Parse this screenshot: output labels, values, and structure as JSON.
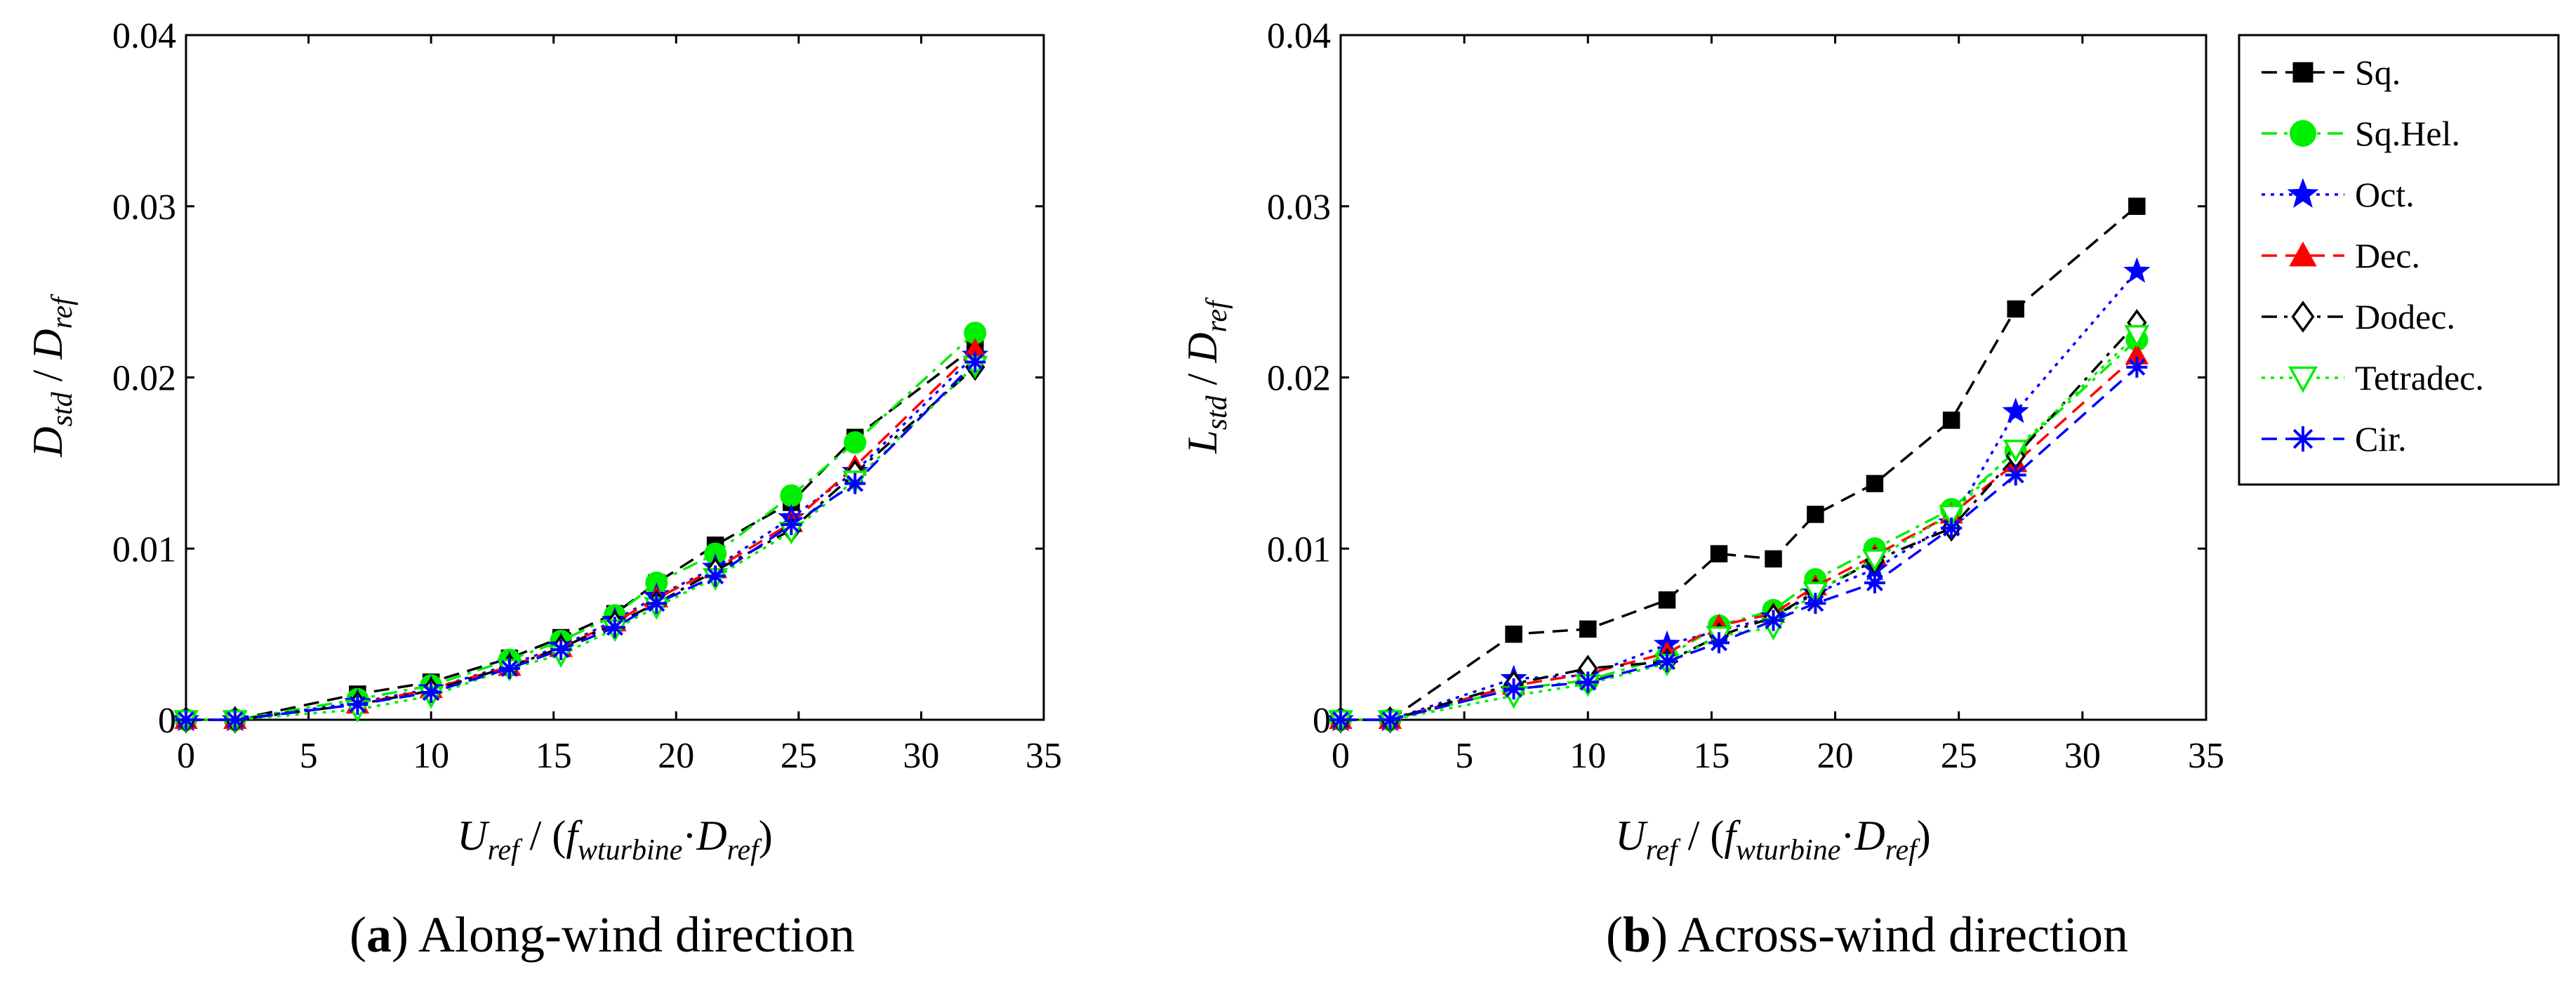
{
  "chart_data": [
    {
      "type": "line",
      "caption_letter": "a",
      "caption_text": "Along-wind direction",
      "ylabel_main": "D",
      "ylabel_sub": "std",
      "ylabel_mid": " / ",
      "ylabel_main2": "D",
      "ylabel_sub2": "ref",
      "xlim": [
        0,
        35
      ],
      "ylim": [
        0,
        0.04
      ],
      "xticks": [
        "0",
        "5",
        "10",
        "15",
        "20",
        "25",
        "30",
        "35"
      ],
      "yticks": [
        "0",
        "0.01",
        "0.02",
        "0.03",
        "0.04"
      ],
      "x": [
        0,
        2,
        7,
        10,
        13.2,
        15.3,
        17.5,
        19.2,
        21.6,
        24.7,
        27.3,
        32.2
      ],
      "series": [
        {
          "name": "Sq.",
          "values": [
            0,
            0,
            0.0015,
            0.0022,
            0.0036,
            0.0048,
            0.0062,
            0.008,
            0.0102,
            0.0127,
            0.0165,
            0.0218
          ]
        },
        {
          "name": "Sq.Hel.",
          "values": [
            0,
            0,
            0.0012,
            0.002,
            0.0035,
            0.0046,
            0.0061,
            0.008,
            0.0097,
            0.0131,
            0.0162,
            0.0226
          ]
        },
        {
          "name": "Oct.",
          "values": [
            0,
            0,
            0.001,
            0.0018,
            0.0032,
            0.0043,
            0.0058,
            0.0072,
            0.0089,
            0.0118,
            0.0145,
            0.0213
          ]
        },
        {
          "name": "Dec.",
          "values": [
            0,
            0,
            0.0009,
            0.0018,
            0.0031,
            0.0042,
            0.0057,
            0.0071,
            0.0088,
            0.0115,
            0.0148,
            0.0216
          ]
        },
        {
          "name": "Dodec.",
          "values": [
            0,
            0,
            0.0009,
            0.0017,
            0.0031,
            0.0042,
            0.0056,
            0.0068,
            0.0087,
            0.0111,
            0.0144,
            0.0206
          ]
        },
        {
          "name": "Tetradec.",
          "values": [
            0,
            0,
            0.0006,
            0.0014,
            0.003,
            0.0038,
            0.0053,
            0.0066,
            0.0083,
            0.011,
            0.014,
            0.0207
          ]
        },
        {
          "name": "Cir.",
          "values": [
            0,
            0,
            0.0009,
            0.0016,
            0.003,
            0.0041,
            0.0054,
            0.0068,
            0.0084,
            0.0114,
            0.0138,
            0.0209
          ]
        }
      ]
    },
    {
      "type": "line",
      "caption_letter": "b",
      "caption_text": "Across-wind direction",
      "ylabel_main": "L",
      "ylabel_sub": "std",
      "ylabel_mid": " / ",
      "ylabel_main2": "D",
      "ylabel_sub2": "ref",
      "xlim": [
        0,
        35
      ],
      "ylim": [
        0,
        0.04
      ],
      "xticks": [
        "0",
        "5",
        "10",
        "15",
        "20",
        "25",
        "30",
        "35"
      ],
      "yticks": [
        "0",
        "0.01",
        "0.02",
        "0.03",
        "0.04"
      ],
      "x": [
        0,
        2,
        7,
        10,
        13.2,
        15.3,
        17.5,
        19.2,
        21.6,
        24.7,
        27.3,
        32.2
      ],
      "series": [
        {
          "name": "Sq.",
          "values": [
            0,
            0,
            0.005,
            0.0053,
            0.007,
            0.0097,
            0.0094,
            0.012,
            0.0138,
            0.0175,
            0.024,
            0.03
          ]
        },
        {
          "name": "Sq.Hel.",
          "values": [
            0,
            0,
            0.0018,
            0.0023,
            0.0037,
            0.0055,
            0.0064,
            0.0082,
            0.01,
            0.0123,
            0.0157,
            0.0222
          ]
        },
        {
          "name": "Oct.",
          "values": [
            0,
            0,
            0.0024,
            0.0026,
            0.0044,
            0.0052,
            0.006,
            0.0074,
            0.0088,
            0.0115,
            0.018,
            0.0262
          ]
        },
        {
          "name": "Dec.",
          "values": [
            0,
            0,
            0.002,
            0.0027,
            0.0039,
            0.0055,
            0.0062,
            0.0078,
            0.0096,
            0.012,
            0.015,
            0.0213
          ]
        },
        {
          "name": "Dodec.",
          "values": [
            0,
            0,
            0.0021,
            0.003,
            0.0034,
            0.0049,
            0.006,
            0.0075,
            0.0093,
            0.0112,
            0.0154,
            0.0232
          ]
        },
        {
          "name": "Tetradec.",
          "values": [
            0,
            0,
            0.0014,
            0.0021,
            0.0033,
            0.0049,
            0.0054,
            0.0075,
            0.0094,
            0.012,
            0.0158,
            0.0225
          ]
        },
        {
          "name": "Cir.",
          "values": [
            0,
            0,
            0.0018,
            0.0022,
            0.0034,
            0.0045,
            0.0058,
            0.0068,
            0.008,
            0.0112,
            0.0143,
            0.0206
          ]
        }
      ]
    }
  ],
  "xlabel": {
    "u_main": "U",
    "u_sub": "ref",
    "mid1": " / (",
    "f_main": "f",
    "f_sub": "wturbine",
    "dot": "·",
    "d_main": "D",
    "d_sub": "ref",
    "close": ")"
  },
  "legend": {
    "entries": [
      {
        "label": "Sq.",
        "color": "#000000",
        "marker": "square",
        "dash": "long-dash"
      },
      {
        "label": "Sq.Hel.",
        "color": "#00ee00",
        "marker": "circle",
        "dash": "dash-dot"
      },
      {
        "label": "Oct.",
        "color": "#0000ff",
        "marker": "star",
        "dash": "dotted"
      },
      {
        "label": "Dec.",
        "color": "#ff0000",
        "marker": "triangle-up",
        "dash": "long-dash"
      },
      {
        "label": "Dodec.",
        "color": "#000000",
        "marker": "diamond-open",
        "dash": "dash-dot"
      },
      {
        "label": "Tetradec.",
        "color": "#00ee00",
        "marker": "triangle-down-open",
        "dash": "dotted"
      },
      {
        "label": "Cir.",
        "color": "#0000ff",
        "marker": "asterisk",
        "dash": "long-dash"
      }
    ]
  }
}
